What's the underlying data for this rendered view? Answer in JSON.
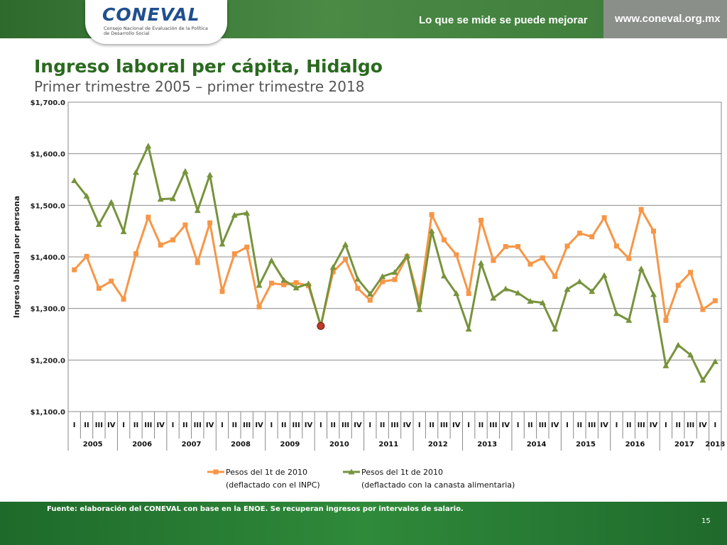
{
  "header": {
    "logo_text": "CONEVAL",
    "logo_subtext": "Consejo Nacional de Evaluación de la Política de Desarrollo Social",
    "tagline": "Lo que se mide se puede mejorar",
    "url": "www.coneval.org.mx"
  },
  "slide": {
    "title": "Ingreso laboral per cápita, Hidalgo",
    "subtitle": "Primer trimestre 2005 – primer trimestre 2018"
  },
  "footer": {
    "source": "Fuente: elaboración del CONEVAL con base en la ENOE. Se recuperan ingresos por intervalos de salario.",
    "page": "15"
  },
  "colors": {
    "inpc": "#f79646",
    "canasta": "#77933c",
    "highlight": "#c0392b"
  },
  "chart_data": {
    "type": "line",
    "ylabel": "Ingreso laboral por persona",
    "ylim": [
      1100,
      1700
    ],
    "yticks": [
      1100,
      1200,
      1300,
      1400,
      1500,
      1600,
      1700
    ],
    "ytick_labels": [
      "$1,100.0",
      "$1,200.0",
      "$1,300.0",
      "$1,400.0",
      "$1,500.0",
      "$1,600.0",
      "$1,700.0"
    ],
    "grid": true,
    "legend_position": "bottom",
    "quarters": [
      "I",
      "II",
      "III",
      "IV",
      "I",
      "II",
      "III",
      "IV",
      "I",
      "II",
      "III",
      "IV",
      "I",
      "II",
      "III",
      "IV",
      "I",
      "II",
      "III",
      "IV",
      "I",
      "II",
      "III",
      "IV",
      "I",
      "II",
      "III",
      "IV",
      "I",
      "II",
      "III",
      "IV",
      "I",
      "II",
      "III",
      "IV",
      "I",
      "II",
      "III",
      "IV",
      "I",
      "II",
      "III",
      "IV",
      "I",
      "II",
      "III",
      "IV",
      "I",
      "II",
      "III",
      "IV",
      "I"
    ],
    "years": [
      {
        "label": "2005",
        "count": 4
      },
      {
        "label": "2006",
        "count": 4
      },
      {
        "label": "2007",
        "count": 4
      },
      {
        "label": "2008",
        "count": 4
      },
      {
        "label": "2009",
        "count": 4
      },
      {
        "label": "2010",
        "count": 4
      },
      {
        "label": "2011",
        "count": 4
      },
      {
        "label": "2012",
        "count": 4
      },
      {
        "label": "2013",
        "count": 4
      },
      {
        "label": "2014",
        "count": 4
      },
      {
        "label": "2015",
        "count": 4
      },
      {
        "label": "2016",
        "count": 4
      },
      {
        "label": "2017",
        "count": 4
      },
      {
        "label": "2018",
        "count": 1
      }
    ],
    "highlight_index": 20,
    "series": [
      {
        "name": "Pesos del 1t de 2010",
        "name_line2": "(deflactado con el INPC)",
        "marker": "square",
        "values": [
          1375,
          1401,
          1339,
          1353,
          1318,
          1406,
          1477,
          1423,
          1433,
          1462,
          1389,
          1466,
          1333,
          1406,
          1419,
          1303,
          1349,
          1346,
          1350,
          1344,
          1266,
          1371,
          1395,
          1339,
          1316,
          1352,
          1356,
          1401,
          1313,
          1482,
          1433,
          1404,
          1329,
          1471,
          1393,
          1420,
          1420,
          1386,
          1398,
          1362,
          1421,
          1446,
          1439,
          1476,
          1421,
          1397,
          1492,
          1450,
          1277,
          1345,
          1370,
          1298,
          1315
        ]
      },
      {
        "name": "Pesos del 1t de 2010",
        "name_line2": "(deflactado con la canasta alimentaria)",
        "marker": "triangle",
        "values": [
          1548,
          1518,
          1463,
          1506,
          1449,
          1564,
          1615,
          1512,
          1513,
          1566,
          1490,
          1559,
          1425,
          1481,
          1485,
          1345,
          1393,
          1355,
          1340,
          1348,
          1266,
          1380,
          1424,
          1357,
          1328,
          1362,
          1370,
          1402,
          1298,
          1450,
          1363,
          1329,
          1260,
          1388,
          1320,
          1338,
          1330,
          1314,
          1311,
          1260,
          1337,
          1352,
          1333,
          1364,
          1290,
          1277,
          1377,
          1327,
          1189,
          1229,
          1210,
          1161,
          1197
        ]
      }
    ]
  }
}
